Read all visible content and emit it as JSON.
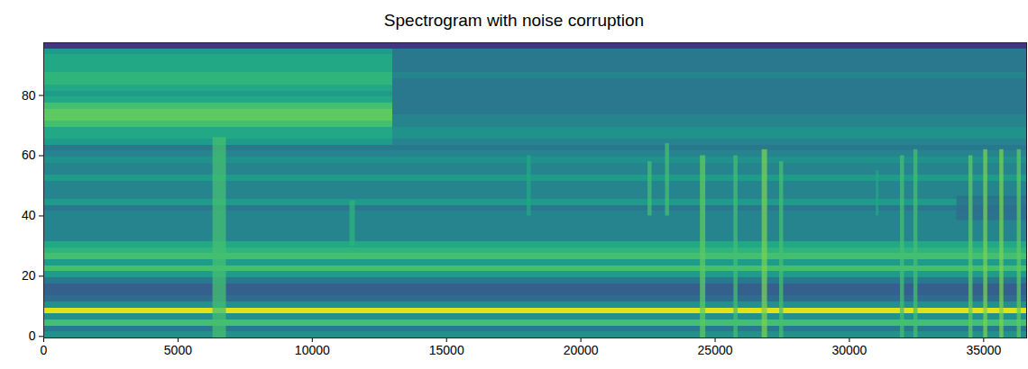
{
  "chart_data": {
    "type": "heatmap",
    "title": "Spectrogram with noise corruption",
    "color": "viridis",
    "xlim": [
      0,
      36600
    ],
    "ylim": [
      -0.5,
      97.5
    ],
    "xticks": [
      0,
      5000,
      10000,
      15000,
      20000,
      25000,
      30000,
      35000
    ],
    "yticks": [
      0,
      20,
      40,
      60,
      80
    ],
    "zlim": [
      0,
      10
    ],
    "y_edges": [
      -0.5,
      1.5,
      3.5,
      5.5,
      7.5,
      9.5,
      11.5,
      13.5,
      15.5,
      17.5,
      19.5,
      21.5,
      23.5,
      25.5,
      27.5,
      29.5,
      31.5,
      33.5,
      35.5,
      37.5,
      39.5,
      41.5,
      43.5,
      45.5,
      47.5,
      49.5,
      51.5,
      53.5,
      55.5,
      57.5,
      59.5,
      61.5,
      63.5,
      65.5,
      67.5,
      69.5,
      71.5,
      73.5,
      75.5,
      77.5,
      79.5,
      81.5,
      83.5,
      85.5,
      87.5,
      89.5,
      91.5,
      93.5,
      95.5,
      97.5
    ],
    "segments": [
      {
        "x": [
          0,
          13000
        ],
        "values": [
          5,
          4,
          7,
          5,
          9.5,
          5,
          3.5,
          3,
          3,
          4,
          5.5,
          7,
          5.5,
          7,
          6.5,
          6,
          4.5,
          4.5,
          4.5,
          4.5,
          4.5,
          4,
          5.5,
          4.5,
          4.5,
          4.5,
          5.5,
          4.5,
          4.5,
          5,
          4.5,
          4,
          5.5,
          6,
          6,
          7,
          7.5,
          7.5,
          7,
          6,
          5.5,
          6,
          6.5,
          6.5,
          6,
          6,
          6,
          5.5,
          1.5
        ]
      },
      {
        "x": [
          13000,
          36600
        ],
        "values": [
          5,
          4,
          7,
          5,
          9.5,
          5,
          3.5,
          3,
          3,
          4,
          5.5,
          7,
          5.5,
          7,
          6.5,
          6,
          4.5,
          4.5,
          4.5,
          4.5,
          4.5,
          4,
          5.5,
          4.5,
          4.5,
          4.5,
          5.5,
          4.5,
          4.5,
          5,
          4.5,
          4,
          4.5,
          5,
          5,
          4.5,
          4.5,
          4,
          4,
          4,
          4,
          4,
          4,
          4.5,
          4,
          4,
          4,
          4,
          1.5
        ]
      }
    ],
    "patches": [
      {
        "x": [
          34000,
          36600
        ],
        "y": [
          38.5,
          46.5
        ],
        "value": 3.5
      },
      {
        "x": [
          6300,
          6800
        ],
        "y": [
          -0.5,
          66
        ],
        "value": 7
      },
      {
        "x": [
          11400,
          11600
        ],
        "y": [
          30,
          45
        ],
        "value": 6.5
      },
      {
        "x": [
          18000,
          18150
        ],
        "y": [
          40,
          60
        ],
        "value": 6
      },
      {
        "x": [
          22500,
          22650
        ],
        "y": [
          40,
          58
        ],
        "value": 7
      },
      {
        "x": [
          23150,
          23300
        ],
        "y": [
          40,
          64
        ],
        "value": 7
      },
      {
        "x": [
          24450,
          24650
        ],
        "y": [
          -0.5,
          60
        ],
        "value": 7.5
      },
      {
        "x": [
          25700,
          25850
        ],
        "y": [
          -0.5,
          60
        ],
        "value": 7
      },
      {
        "x": [
          26750,
          26950
        ],
        "y": [
          -0.5,
          62
        ],
        "value": 8
      },
      {
        "x": [
          27400,
          27550
        ],
        "y": [
          -0.5,
          58
        ],
        "value": 7
      },
      {
        "x": [
          31000,
          31100
        ],
        "y": [
          40,
          55
        ],
        "value": 6
      },
      {
        "x": [
          31900,
          32050
        ],
        "y": [
          -0.5,
          60
        ],
        "value": 7
      },
      {
        "x": [
          32400,
          32550
        ],
        "y": [
          -0.5,
          62
        ],
        "value": 7
      },
      {
        "x": [
          34450,
          34600
        ],
        "y": [
          -0.5,
          60
        ],
        "value": 7.5
      },
      {
        "x": [
          35000,
          35150
        ],
        "y": [
          -0.5,
          62
        ],
        "value": 8
      },
      {
        "x": [
          35600,
          35750
        ],
        "y": [
          -0.5,
          62
        ],
        "value": 8
      },
      {
        "x": [
          36250,
          36400
        ],
        "y": [
          -0.5,
          62
        ],
        "value": 7.5
      }
    ]
  }
}
